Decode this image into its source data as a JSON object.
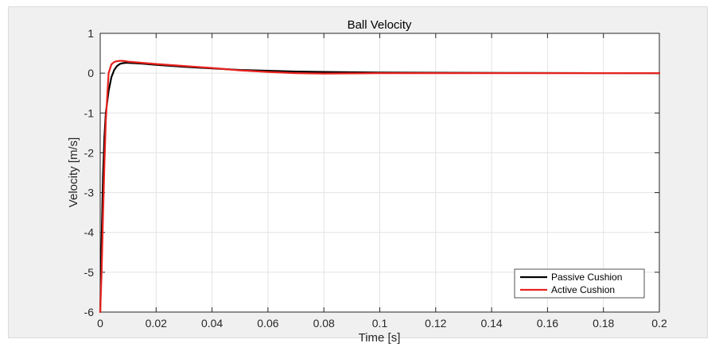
{
  "chart_data": {
    "type": "line",
    "title": "Ball Velocity",
    "xlabel": "Time [s]",
    "ylabel": "Velocity [m/s]",
    "xlim": [
      0,
      0.2
    ],
    "ylim": [
      -6,
      1
    ],
    "xticks": [
      0,
      0.02,
      0.04,
      0.06,
      0.08,
      0.1,
      0.12,
      0.14,
      0.16,
      0.18,
      0.2
    ],
    "xtick_labels": [
      "0",
      "0.02",
      "0.04",
      "0.06",
      "0.08",
      "0.1",
      "0.12",
      "0.14",
      "0.16",
      "0.18",
      "0.2"
    ],
    "yticks": [
      -6,
      -5,
      -4,
      -3,
      -2,
      -1,
      0,
      1
    ],
    "ytick_labels": [
      "-6",
      "-5",
      "-4",
      "-3",
      "-2",
      "-1",
      "0",
      "1"
    ],
    "grid": true,
    "legend_location": "bottom-right",
    "series": [
      {
        "name": "Passive Cushion",
        "color": "#000000",
        "x": [
          0,
          0.0005,
          0.001,
          0.0015,
          0.002,
          0.003,
          0.004,
          0.005,
          0.006,
          0.007,
          0.008,
          0.009,
          0.01,
          0.015,
          0.02,
          0.03,
          0.04,
          0.05,
          0.06,
          0.07,
          0.08,
          0.1,
          0.12,
          0.15,
          0.2
        ],
        "y": [
          -6,
          -4.2,
          -2.6,
          -1.6,
          -1.0,
          -0.45,
          -0.1,
          0.08,
          0.18,
          0.23,
          0.25,
          0.26,
          0.26,
          0.24,
          0.21,
          0.16,
          0.12,
          0.08,
          0.06,
          0.04,
          0.03,
          0.015,
          0.01,
          0.005,
          0.0
        ]
      },
      {
        "name": "Active Cushion",
        "color": "#e8221e",
        "x": [
          0,
          0.0005,
          0.001,
          0.0015,
          0.002,
          0.003,
          0.004,
          0.005,
          0.006,
          0.007,
          0.008,
          0.009,
          0.01,
          0.015,
          0.02,
          0.03,
          0.04,
          0.05,
          0.06,
          0.07,
          0.08,
          0.1,
          0.12,
          0.15,
          0.2
        ],
        "y": [
          -6,
          -5.0,
          -3.6,
          -2.3,
          -1.2,
          0.0,
          0.22,
          0.28,
          0.3,
          0.31,
          0.31,
          0.3,
          0.29,
          0.26,
          0.23,
          0.18,
          0.13,
          0.07,
          0.03,
          0.0,
          -0.01,
          0.0,
          0.0,
          0.0,
          0.0
        ]
      }
    ]
  }
}
